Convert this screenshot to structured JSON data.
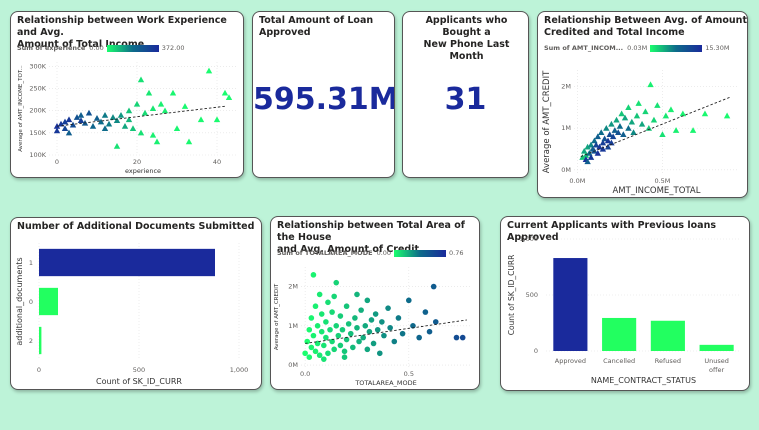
{
  "colors": {
    "navy": "#1a2a9c",
    "green": "#1aff6e",
    "teal": "#0d6b8a",
    "bg": "#bdf3d8",
    "axis": "#605e5c",
    "grid": "#e0e0e0",
    "bar_green": "#22ff60"
  },
  "cards": {
    "experience": {
      "title_line1": "Relationship between Work Experience and Avg.",
      "title_line2": "Amount of Total Income",
      "legend_title": "Sum of experience",
      "legend_min": "0.00",
      "legend_max": "372.00"
    },
    "loan_total": {
      "title_line1": "Total Amount of Loan",
      "title_line2": "Approved",
      "value": "595.31M"
    },
    "phone": {
      "title_line1": "Applicants who Bought a",
      "title_line2": "New Phone Last Month",
      "value": "31"
    },
    "credit_income": {
      "title_line1": "Relationship Between Avg. of Amount",
      "title_line2": "Credited and Total Income",
      "legend_title": "Sum of AMT_INCOM...",
      "legend_min": "0.03M",
      "legend_max": "15.30M"
    },
    "documents": {
      "title_line1": "Number of Additional Documents Submitted",
      "title_line2": ""
    },
    "house_area": {
      "title_line1": "Relationship between Total Area of the House",
      "title_line2": "and Avg. Amount of Credit",
      "legend_title": "Sum of TOTALAREA_MODE",
      "legend_min": "0.00",
      "legend_max": "0.76"
    },
    "previous": {
      "title_line1": "Current Applicants with Previous loans Approved",
      "title_line2": ""
    }
  },
  "chart_data": [
    {
      "id": "experience",
      "type": "scatter",
      "marker": "triangle",
      "xlabel": "experience",
      "ylabel": "Average of AMT_INCOME_TOT...",
      "xlim": [
        -2,
        45
      ],
      "ylim": [
        100000,
        310000
      ],
      "xticks": [
        0,
        20,
        40
      ],
      "xtick_labels": [
        "0",
        "20",
        "40"
      ],
      "yticks": [
        100000,
        150000,
        200000,
        250000,
        300000
      ],
      "ytick_labels": [
        "100K",
        "150K",
        "200K",
        "250K",
        "300K"
      ],
      "trendline": [
        [
          0,
          165000
        ],
        [
          42,
          210000
        ]
      ],
      "points": [
        {
          "x": 0,
          "y": 165000,
          "c": 0.95
        },
        {
          "x": 1,
          "y": 170000,
          "c": 0.9
        },
        {
          "x": 2,
          "y": 175000,
          "c": 0.85
        },
        {
          "x": 2,
          "y": 160000,
          "c": 0.8
        },
        {
          "x": 3,
          "y": 180000,
          "c": 0.9
        },
        {
          "x": 4,
          "y": 168000,
          "c": 0.75
        },
        {
          "x": 5,
          "y": 185000,
          "c": 0.7
        },
        {
          "x": 6,
          "y": 178000,
          "c": 0.85
        },
        {
          "x": 6,
          "y": 190000,
          "c": 0.6
        },
        {
          "x": 7,
          "y": 172000,
          "c": 0.65
        },
        {
          "x": 8,
          "y": 195000,
          "c": 0.7
        },
        {
          "x": 9,
          "y": 165000,
          "c": 0.55
        },
        {
          "x": 10,
          "y": 183000,
          "c": 0.6
        },
        {
          "x": 11,
          "y": 175000,
          "c": 0.5
        },
        {
          "x": 12,
          "y": 160000,
          "c": 0.5
        },
        {
          "x": 12,
          "y": 190000,
          "c": 0.45
        },
        {
          "x": 13,
          "y": 170000,
          "c": 0.45
        },
        {
          "x": 14,
          "y": 185000,
          "c": 0.4
        },
        {
          "x": 15,
          "y": 178000,
          "c": 0.4
        },
        {
          "x": 16,
          "y": 190000,
          "c": 0.35
        },
        {
          "x": 17,
          "y": 165000,
          "c": 0.3
        },
        {
          "x": 18,
          "y": 180000,
          "c": 0.25
        },
        {
          "x": 18,
          "y": 200000,
          "c": 0.2
        },
        {
          "x": 19,
          "y": 160000,
          "c": 0.2
        },
        {
          "x": 20,
          "y": 215000,
          "c": 0.15
        },
        {
          "x": 21,
          "y": 150000,
          "c": 0.1
        },
        {
          "x": 21,
          "y": 270000,
          "c": 0.1
        },
        {
          "x": 22,
          "y": 195000,
          "c": 0.12
        },
        {
          "x": 23,
          "y": 240000,
          "c": 0.08
        },
        {
          "x": 24,
          "y": 205000,
          "c": 0.08
        },
        {
          "x": 25,
          "y": 130000,
          "c": 0.05
        },
        {
          "x": 26,
          "y": 215000,
          "c": 0.05
        },
        {
          "x": 27,
          "y": 200000,
          "c": 0.05
        },
        {
          "x": 29,
          "y": 240000,
          "c": 0.03
        },
        {
          "x": 30,
          "y": 160000,
          "c": 0.03
        },
        {
          "x": 32,
          "y": 210000,
          "c": 0.02
        },
        {
          "x": 33,
          "y": 130000,
          "c": 0.02
        },
        {
          "x": 36,
          "y": 180000,
          "c": 0.02
        },
        {
          "x": 38,
          "y": 290000,
          "c": 0.01
        },
        {
          "x": 40,
          "y": 180000,
          "c": 0.01
        },
        {
          "x": 42,
          "y": 240000,
          "c": 0.01
        },
        {
          "x": 43,
          "y": 230000,
          "c": 0.01
        },
        {
          "x": 0,
          "y": 155000,
          "c": 0.9
        },
        {
          "x": 3,
          "y": 150000,
          "c": 0.6
        },
        {
          "x": 15,
          "y": 120000,
          "c": 0.1
        },
        {
          "x": 24,
          "y": 145000,
          "c": 0.05
        }
      ]
    },
    {
      "id": "credit_income",
      "type": "scatter",
      "marker": "triangle",
      "xlabel": "AMT_INCOME_TOTAL",
      "ylabel": "Average of AMT_CREDIT",
      "xlim": [
        -0.02,
        0.95
      ],
      "ylim": [
        -0.1,
        2.4
      ],
      "xticks": [
        0,
        0.5
      ],
      "xtick_labels": [
        "0.0M",
        "0.5M"
      ],
      "yticks": [
        0,
        1,
        2
      ],
      "ytick_labels": [
        "0M",
        "1M",
        "2M"
      ],
      "trendline": [
        [
          0.02,
          0.32
        ],
        [
          0.9,
          1.75
        ]
      ],
      "points": [
        {
          "x": 0.03,
          "y": 0.3,
          "c": 0.2
        },
        {
          "x": 0.04,
          "y": 0.45,
          "c": 0.3
        },
        {
          "x": 0.05,
          "y": 0.35,
          "c": 0.2
        },
        {
          "x": 0.06,
          "y": 0.55,
          "c": 0.3
        },
        {
          "x": 0.07,
          "y": 0.4,
          "c": 0.5
        },
        {
          "x": 0.08,
          "y": 0.6,
          "c": 0.4
        },
        {
          "x": 0.09,
          "y": 0.5,
          "c": 0.6
        },
        {
          "x": 0.1,
          "y": 0.7,
          "c": 0.5
        },
        {
          "x": 0.1,
          "y": 0.45,
          "c": 0.7
        },
        {
          "x": 0.11,
          "y": 0.6,
          "c": 0.8
        },
        {
          "x": 0.12,
          "y": 0.8,
          "c": 0.6
        },
        {
          "x": 0.13,
          "y": 0.55,
          "c": 0.9
        },
        {
          "x": 0.14,
          "y": 0.9,
          "c": 0.5
        },
        {
          "x": 0.15,
          "y": 0.65,
          "c": 0.85
        },
        {
          "x": 0.16,
          "y": 0.75,
          "c": 0.7
        },
        {
          "x": 0.17,
          "y": 1.0,
          "c": 0.4
        },
        {
          "x": 0.18,
          "y": 0.7,
          "c": 0.9
        },
        {
          "x": 0.19,
          "y": 0.85,
          "c": 0.75
        },
        {
          "x": 0.2,
          "y": 1.1,
          "c": 0.35
        },
        {
          "x": 0.21,
          "y": 0.8,
          "c": 0.8
        },
        {
          "x": 0.22,
          "y": 0.95,
          "c": 0.6
        },
        {
          "x": 0.23,
          "y": 1.2,
          "c": 0.3
        },
        {
          "x": 0.24,
          "y": 0.9,
          "c": 0.7
        },
        {
          "x": 0.25,
          "y": 1.05,
          "c": 0.5
        },
        {
          "x": 0.26,
          "y": 1.35,
          "c": 0.2
        },
        {
          "x": 0.27,
          "y": 0.85,
          "c": 0.6
        },
        {
          "x": 0.28,
          "y": 1.25,
          "c": 0.3
        },
        {
          "x": 0.3,
          "y": 1.0,
          "c": 0.5
        },
        {
          "x": 0.3,
          "y": 1.5,
          "c": 0.15
        },
        {
          "x": 0.32,
          "y": 1.15,
          "c": 0.3
        },
        {
          "x": 0.33,
          "y": 0.9,
          "c": 0.4
        },
        {
          "x": 0.35,
          "y": 1.3,
          "c": 0.2
        },
        {
          "x": 0.36,
          "y": 1.6,
          "c": 0.1
        },
        {
          "x": 0.38,
          "y": 1.1,
          "c": 0.3
        },
        {
          "x": 0.4,
          "y": 1.4,
          "c": 0.15
        },
        {
          "x": 0.42,
          "y": 1.0,
          "c": 0.2
        },
        {
          "x": 0.43,
          "y": 2.05,
          "c": 0.05
        },
        {
          "x": 0.45,
          "y": 1.2,
          "c": 0.15
        },
        {
          "x": 0.47,
          "y": 1.55,
          "c": 0.1
        },
        {
          "x": 0.5,
          "y": 0.85,
          "c": 0.1
        },
        {
          "x": 0.52,
          "y": 1.3,
          "c": 0.08
        },
        {
          "x": 0.55,
          "y": 1.45,
          "c": 0.05
        },
        {
          "x": 0.58,
          "y": 0.95,
          "c": 0.05
        },
        {
          "x": 0.62,
          "y": 1.35,
          "c": 0.04
        },
        {
          "x": 0.68,
          "y": 0.95,
          "c": 0.03
        },
        {
          "x": 0.75,
          "y": 1.35,
          "c": 0.02
        },
        {
          "x": 0.88,
          "y": 1.3,
          "c": 0.02
        },
        {
          "x": 0.05,
          "y": 0.25,
          "c": 0.95
        },
        {
          "x": 0.08,
          "y": 0.3,
          "c": 0.9
        },
        {
          "x": 0.12,
          "y": 0.4,
          "c": 0.95
        },
        {
          "x": 0.15,
          "y": 0.5,
          "c": 0.9
        },
        {
          "x": 0.18,
          "y": 0.55,
          "c": 0.8
        },
        {
          "x": 0.2,
          "y": 0.65,
          "c": 0.85
        },
        {
          "x": 0.06,
          "y": 0.2,
          "c": 0.6
        }
      ]
    },
    {
      "id": "documents",
      "type": "bar",
      "orientation": "horizontal",
      "xlabel": "Count of SK_ID_CURR",
      "ylabel": "additional_documents",
      "categories": [
        "1",
        "0",
        "2"
      ],
      "values": [
        880,
        95,
        12
      ],
      "bar_colors": [
        "#1a2a9c",
        "#22ff60",
        "#22ff60"
      ],
      "xlim": [
        0,
        1000
      ],
      "xticks": [
        0,
        500,
        1000
      ],
      "xtick_labels": [
        "0",
        "500",
        "1,000"
      ]
    },
    {
      "id": "house_area",
      "type": "scatter",
      "marker": "circle",
      "xlabel": "TOTALAREA_MODE",
      "ylabel": "Average of AMT_CREDIT",
      "xlim": [
        -0.02,
        0.8
      ],
      "ylim": [
        -0.05,
        2.5
      ],
      "xticks": [
        0,
        0.5
      ],
      "xtick_labels": [
        "0.0",
        "0.5"
      ],
      "yticks": [
        0,
        1,
        2
      ],
      "ytick_labels": [
        "0M",
        "1M",
        "2M"
      ],
      "trendline": [
        [
          0.0,
          0.55
        ],
        [
          0.78,
          1.15
        ]
      ],
      "points": [
        {
          "x": 0.0,
          "y": 0.3,
          "c": 0.0
        },
        {
          "x": 0.01,
          "y": 0.6,
          "c": 0.0
        },
        {
          "x": 0.02,
          "y": 0.9,
          "c": 0.02
        },
        {
          "x": 0.02,
          "y": 0.2,
          "c": 0.02
        },
        {
          "x": 0.03,
          "y": 1.2,
          "c": 0.03
        },
        {
          "x": 0.03,
          "y": 0.45,
          "c": 0.03
        },
        {
          "x": 0.04,
          "y": 0.75,
          "c": 0.04
        },
        {
          "x": 0.05,
          "y": 1.5,
          "c": 0.05
        },
        {
          "x": 0.05,
          "y": 0.35,
          "c": 0.05
        },
        {
          "x": 0.06,
          "y": 1.0,
          "c": 0.06
        },
        {
          "x": 0.06,
          "y": 0.55,
          "c": 0.06
        },
        {
          "x": 0.07,
          "y": 1.8,
          "c": 0.07
        },
        {
          "x": 0.07,
          "y": 0.25,
          "c": 0.07
        },
        {
          "x": 0.08,
          "y": 0.85,
          "c": 0.08
        },
        {
          "x": 0.08,
          "y": 1.3,
          "c": 0.08
        },
        {
          "x": 0.09,
          "y": 0.5,
          "c": 0.09
        },
        {
          "x": 0.1,
          "y": 0.7,
          "c": 0.1
        },
        {
          "x": 0.1,
          "y": 1.1,
          "c": 0.1
        },
        {
          "x": 0.11,
          "y": 0.3,
          "c": 0.11
        },
        {
          "x": 0.11,
          "y": 1.6,
          "c": 0.11
        },
        {
          "x": 0.12,
          "y": 0.9,
          "c": 0.12
        },
        {
          "x": 0.13,
          "y": 0.6,
          "c": 0.13
        },
        {
          "x": 0.13,
          "y": 1.35,
          "c": 0.13
        },
        {
          "x": 0.14,
          "y": 0.4,
          "c": 0.14
        },
        {
          "x": 0.15,
          "y": 1.0,
          "c": 0.15
        },
        {
          "x": 0.15,
          "y": 2.1,
          "c": 0.15
        },
        {
          "x": 0.16,
          "y": 0.75,
          "c": 0.16
        },
        {
          "x": 0.17,
          "y": 0.5,
          "c": 0.17
        },
        {
          "x": 0.17,
          "y": 1.25,
          "c": 0.17
        },
        {
          "x": 0.18,
          "y": 0.9,
          "c": 0.18
        },
        {
          "x": 0.19,
          "y": 0.35,
          "c": 0.19
        },
        {
          "x": 0.2,
          "y": 1.5,
          "c": 0.2
        },
        {
          "x": 0.2,
          "y": 0.65,
          "c": 0.2
        },
        {
          "x": 0.21,
          "y": 1.05,
          "c": 0.21
        },
        {
          "x": 0.22,
          "y": 0.8,
          "c": 0.22
        },
        {
          "x": 0.23,
          "y": 0.45,
          "c": 0.23
        },
        {
          "x": 0.24,
          "y": 1.2,
          "c": 0.24
        },
        {
          "x": 0.25,
          "y": 0.95,
          "c": 0.25
        },
        {
          "x": 0.25,
          "y": 1.8,
          "c": 0.25
        },
        {
          "x": 0.26,
          "y": 0.6,
          "c": 0.26
        },
        {
          "x": 0.27,
          "y": 1.4,
          "c": 0.27
        },
        {
          "x": 0.28,
          "y": 0.7,
          "c": 0.28
        },
        {
          "x": 0.29,
          "y": 1.0,
          "c": 0.29
        },
        {
          "x": 0.3,
          "y": 0.4,
          "c": 0.3
        },
        {
          "x": 0.3,
          "y": 1.65,
          "c": 0.3
        },
        {
          "x": 0.31,
          "y": 0.85,
          "c": 0.31
        },
        {
          "x": 0.32,
          "y": 1.15,
          "c": 0.32
        },
        {
          "x": 0.33,
          "y": 0.55,
          "c": 0.33
        },
        {
          "x": 0.34,
          "y": 1.3,
          "c": 0.34
        },
        {
          "x": 0.35,
          "y": 0.9,
          "c": 0.35
        },
        {
          "x": 0.36,
          "y": 0.3,
          "c": 0.36
        },
        {
          "x": 0.37,
          "y": 1.1,
          "c": 0.37
        },
        {
          "x": 0.38,
          "y": 0.75,
          "c": 0.38
        },
        {
          "x": 0.4,
          "y": 1.45,
          "c": 0.4
        },
        {
          "x": 0.41,
          "y": 0.95,
          "c": 0.41
        },
        {
          "x": 0.43,
          "y": 0.6,
          "c": 0.43
        },
        {
          "x": 0.45,
          "y": 1.2,
          "c": 0.45
        },
        {
          "x": 0.47,
          "y": 0.8,
          "c": 0.47
        },
        {
          "x": 0.5,
          "y": 1.65,
          "c": 0.5
        },
        {
          "x": 0.52,
          "y": 1.0,
          "c": 0.52
        },
        {
          "x": 0.55,
          "y": 0.7,
          "c": 0.55
        },
        {
          "x": 0.58,
          "y": 1.35,
          "c": 0.58
        },
        {
          "x": 0.6,
          "y": 0.85,
          "c": 0.6
        },
        {
          "x": 0.62,
          "y": 2.0,
          "c": 0.62
        },
        {
          "x": 0.63,
          "y": 1.1,
          "c": 0.63
        },
        {
          "x": 0.73,
          "y": 0.7,
          "c": 0.73
        },
        {
          "x": 0.76,
          "y": 0.7,
          "c": 0.76
        },
        {
          "x": 0.04,
          "y": 2.3,
          "c": 0.04
        },
        {
          "x": 0.09,
          "y": 0.15,
          "c": 0.09
        },
        {
          "x": 0.14,
          "y": 1.75,
          "c": 0.14
        },
        {
          "x": 0.19,
          "y": 0.2,
          "c": 0.19
        }
      ]
    },
    {
      "id": "previous",
      "type": "bar",
      "orientation": "vertical",
      "xlabel": "NAME_CONTRACT_STATUS",
      "ylabel": "Count of SK_ID_CURR",
      "categories": [
        "Approved",
        "Cancelled",
        "Refused",
        "Unused offer"
      ],
      "category_lines": [
        [
          "Approved"
        ],
        [
          "Cancelled"
        ],
        [
          "Refused"
        ],
        [
          "Unused",
          "offer"
        ]
      ],
      "values": [
        830,
        295,
        270,
        55
      ],
      "bar_colors": [
        "#1a2a9c",
        "#22ff60",
        "#22ff60",
        "#22ff60"
      ],
      "ylim": [
        0,
        1000
      ],
      "yticks": [
        0,
        500,
        1000
      ],
      "ytick_labels": [
        "0",
        "500",
        "1,000"
      ]
    }
  ]
}
